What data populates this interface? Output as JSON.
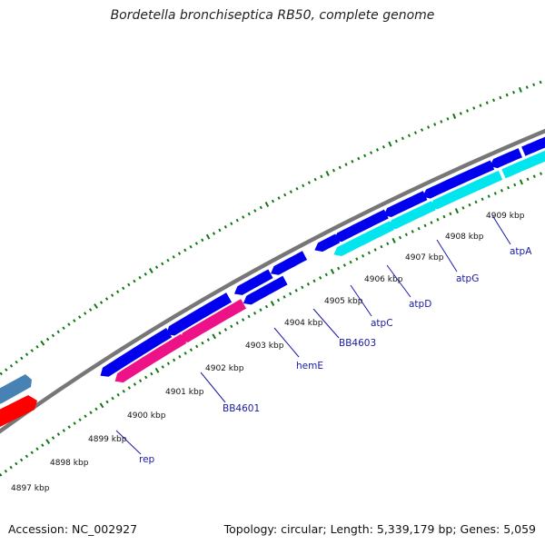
{
  "title": "Bordetella bronchiseptica RB50, complete genome",
  "footer": {
    "accession": "Accession: NC_002927",
    "summary": "Topology: circular; Length: 5,339,179 bp; Genes: 5,059"
  },
  "colors": {
    "forward_gene": "#0000ee",
    "reverse_gene_rna": "#00e5ee",
    "pink_gene": "#ee1289",
    "red_gene": "#ff0000",
    "steel_gene": "#4682b4",
    "backbone": "#777777",
    "ticks": "#117711",
    "gene_label": "#1a1aa6"
  },
  "kbp_labels": [
    "4897 kbp",
    "4898 kbp",
    "4899 kbp",
    "4900 kbp",
    "4901 kbp",
    "4902 kbp",
    "4903 kbp",
    "4904 kbp",
    "4905 kbp",
    "4906 kbp",
    "4907 kbp",
    "4908 kbp",
    "4909 kbp"
  ],
  "gene_labels": [
    "rep",
    "BB4601",
    "hemE",
    "BB4603",
    "atpC",
    "atpD",
    "atpG",
    "atpA"
  ]
}
